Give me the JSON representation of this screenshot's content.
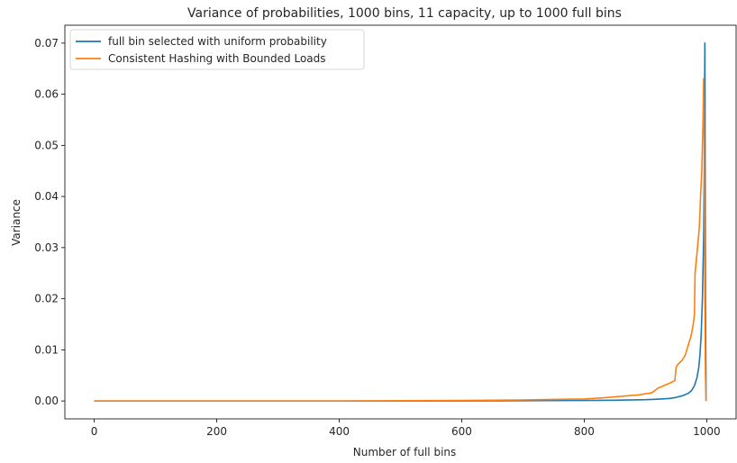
{
  "chart_data": {
    "type": "line",
    "title": "Variance of probabilities, 1000 bins, 11 capacity, up to 1000 full bins",
    "xlabel": "Number of full bins",
    "ylabel": "Variance",
    "xlim": [
      -48,
      1048
    ],
    "ylim": [
      -0.0035,
      0.0735
    ],
    "xticks": [
      0,
      200,
      400,
      600,
      800,
      1000
    ],
    "xtick_labels": [
      "0",
      "200",
      "400",
      "600",
      "800",
      "1000"
    ],
    "yticks": [
      0.0,
      0.01,
      0.02,
      0.03,
      0.04,
      0.05,
      0.06,
      0.07
    ],
    "ytick_labels": [
      "0.00",
      "0.01",
      "0.02",
      "0.03",
      "0.04",
      "0.05",
      "0.06",
      "0.07"
    ],
    "grid": false,
    "legend_position": "top-left",
    "series": [
      {
        "name": "full bin selected with uniform probability",
        "color": "#1f77b4",
        "x": [
          0,
          200,
          400,
          600,
          700,
          800,
          850,
          900,
          920,
          940,
          950,
          960,
          970,
          975,
          980,
          984,
          987,
          989,
          991,
          993,
          995,
          996,
          997,
          998,
          999
        ],
        "y": [
          0.0,
          0.0,
          0.0,
          2e-05,
          5e-05,
          0.0001,
          0.00015,
          0.00025,
          0.00035,
          0.0005,
          0.0007,
          0.001,
          0.0015,
          0.002,
          0.003,
          0.0045,
          0.0065,
          0.009,
          0.013,
          0.02,
          0.032,
          0.045,
          0.07,
          0.02,
          0.0
        ]
      },
      {
        "name": "Consistent Hashing with Bounded Loads",
        "color": "#ff7f0e",
        "x": [
          0,
          200,
          400,
          600,
          700,
          750,
          800,
          830,
          850,
          870,
          890,
          900,
          910,
          915,
          920,
          930,
          940,
          948,
          950,
          952,
          960,
          965,
          970,
          975,
          978,
          980,
          981,
          985,
          988,
          990,
          992,
          994,
          995,
          996,
          997,
          998,
          999
        ],
        "y": [
          0.0,
          0.0,
          0.0,
          0.0001,
          0.0002,
          0.0003,
          0.0004,
          0.0006,
          0.0008,
          0.001,
          0.0012,
          0.0014,
          0.0016,
          0.002,
          0.0025,
          0.003,
          0.0035,
          0.004,
          0.0065,
          0.007,
          0.008,
          0.009,
          0.011,
          0.013,
          0.015,
          0.017,
          0.025,
          0.03,
          0.034,
          0.04,
          0.045,
          0.055,
          0.063,
          0.05,
          0.02,
          0.005,
          0.0
        ]
      }
    ]
  }
}
